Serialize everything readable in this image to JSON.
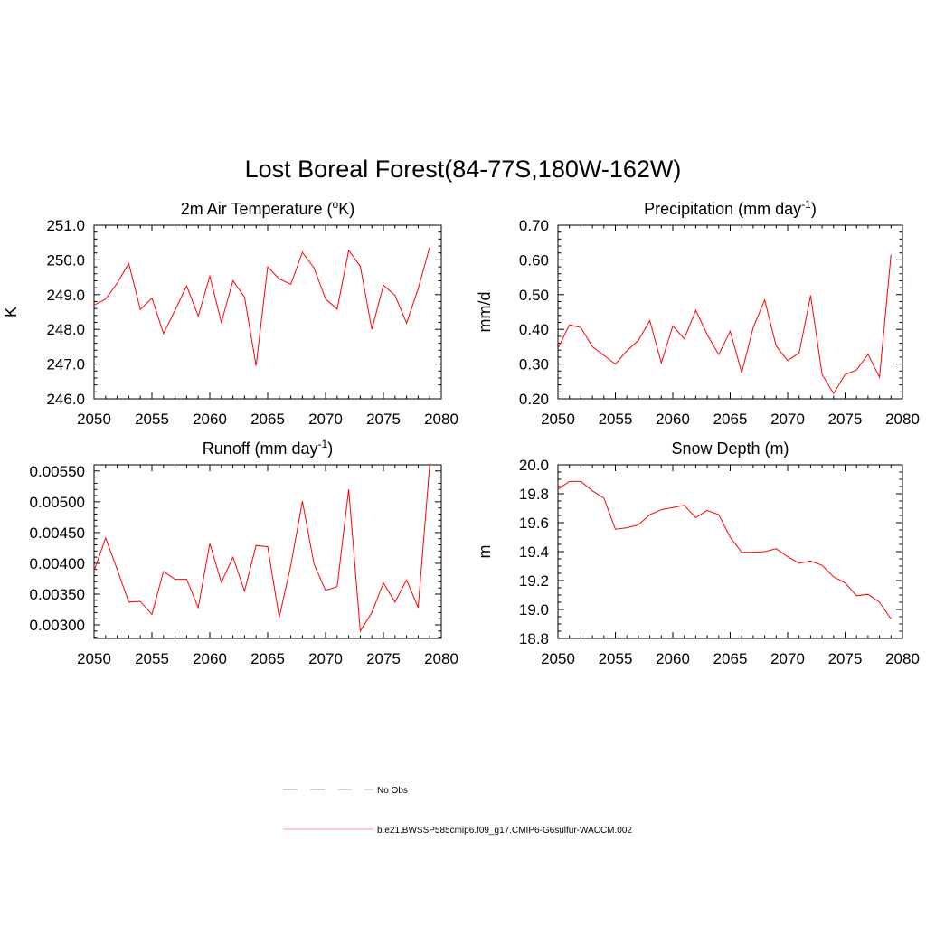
{
  "figure": {
    "title": "Lost Boreal Forest(84-77S,180W-162W)"
  },
  "legend": {
    "entries": [
      {
        "label": "No Obs",
        "color": "#9999cc",
        "style": "dashed"
      },
      {
        "label": "b.e21.BWSSP585cmip6.f09_g17.CMIP6-G6sulfur-WACCM.002",
        "color": "#ff0000",
        "style": "solid"
      }
    ]
  },
  "chart_data": [
    {
      "id": "temp",
      "type": "line",
      "title": "2m Air Temperature (",
      "title_sup": "o",
      "title_post": "K)",
      "ylabel": "K",
      "xlim": [
        2050,
        2080
      ],
      "ylim": [
        246.0,
        251.0
      ],
      "xticks": [
        2050,
        2055,
        2060,
        2065,
        2070,
        2075,
        2080
      ],
      "yticks": [
        246.0,
        247.0,
        248.0,
        249.0,
        250.0,
        251.0
      ],
      "ytick_labels": [
        "246.0",
        "247.0",
        "248.0",
        "249.0",
        "250.0",
        "251.0"
      ],
      "series": [
        {
          "color": "#ff0000",
          "x": [
            2050,
            2051,
            2052,
            2053,
            2054,
            2055,
            2056,
            2057,
            2058,
            2059,
            2060,
            2061,
            2062,
            2063,
            2064,
            2065,
            2066,
            2067,
            2068,
            2069,
            2070,
            2071,
            2072,
            2073,
            2074,
            2075,
            2076,
            2077,
            2078,
            2079
          ],
          "y": [
            248.7,
            248.87,
            249.33,
            249.9,
            248.57,
            248.9,
            247.88,
            248.55,
            249.25,
            248.38,
            249.53,
            248.2,
            249.4,
            248.93,
            246.95,
            249.8,
            249.45,
            249.3,
            250.22,
            249.77,
            248.88,
            248.58,
            250.27,
            249.82,
            248.0,
            249.27,
            248.98,
            248.18,
            249.17,
            250.37
          ]
        }
      ]
    },
    {
      "id": "precip",
      "type": "line",
      "title": "Precipitation (mm day",
      "title_sup": "-1",
      "title_post": ")",
      "ylabel": "mm/d",
      "xlim": [
        2050,
        2080
      ],
      "ylim": [
        0.2,
        0.7
      ],
      "xticks": [
        2050,
        2055,
        2060,
        2065,
        2070,
        2075,
        2080
      ],
      "yticks": [
        0.2,
        0.3,
        0.4,
        0.5,
        0.6,
        0.7
      ],
      "ytick_labels": [
        "0.20",
        "0.30",
        "0.40",
        "0.50",
        "0.60",
        "0.70"
      ],
      "series": [
        {
          "color": "#ff0000",
          "x": [
            2050,
            2051,
            2052,
            2053,
            2054,
            2055,
            2056,
            2057,
            2058,
            2059,
            2060,
            2061,
            2062,
            2063,
            2064,
            2065,
            2066,
            2067,
            2068,
            2069,
            2070,
            2071,
            2072,
            2073,
            2074,
            2075,
            2076,
            2077,
            2078,
            2079
          ],
          "y": [
            0.345,
            0.413,
            0.405,
            0.35,
            0.325,
            0.3,
            0.338,
            0.368,
            0.425,
            0.303,
            0.41,
            0.373,
            0.455,
            0.385,
            0.327,
            0.395,
            0.275,
            0.405,
            0.485,
            0.352,
            0.31,
            0.332,
            0.498,
            0.27,
            0.215,
            0.27,
            0.283,
            0.328,
            0.262,
            0.615
          ]
        }
      ]
    },
    {
      "id": "runoff",
      "type": "line",
      "title": "Runoff (mm day",
      "title_sup": "-1",
      "title_post": ")",
      "ylabel": "",
      "xlim": [
        2050,
        2080
      ],
      "ylim": [
        0.00278,
        0.0056
      ],
      "xticks": [
        2050,
        2055,
        2060,
        2065,
        2070,
        2075,
        2080
      ],
      "yticks": [
        0.003,
        0.0035,
        0.004,
        0.0045,
        0.005,
        0.0055
      ],
      "ytick_labels": [
        "0.00300",
        "0.00350",
        "0.00400",
        "0.00450",
        "0.00500",
        "0.00550"
      ],
      "series": [
        {
          "color": "#ff0000",
          "x": [
            2050,
            2051,
            2052,
            2053,
            2054,
            2055,
            2056,
            2057,
            2058,
            2059,
            2060,
            2061,
            2062,
            2063,
            2064,
            2065,
            2066,
            2067,
            2068,
            2069,
            2070,
            2071,
            2072,
            2073,
            2074,
            2075,
            2076,
            2077,
            2078,
            2079
          ],
          "y": [
            0.00388,
            0.00441,
            0.0039,
            0.00337,
            0.00338,
            0.00317,
            0.00387,
            0.00374,
            0.00374,
            0.00328,
            0.00432,
            0.00369,
            0.0041,
            0.00355,
            0.00429,
            0.00427,
            0.00312,
            0.00397,
            0.00501,
            0.00399,
            0.00356,
            0.00362,
            0.0052,
            0.0029,
            0.0032,
            0.00368,
            0.00337,
            0.00373,
            0.00328,
            0.0056
          ]
        }
      ]
    },
    {
      "id": "snow",
      "type": "line",
      "title": "Snow Depth (m)",
      "title_sup": "",
      "title_post": "",
      "ylabel": "m",
      "xlim": [
        2050,
        2080
      ],
      "ylim": [
        18.8,
        20.0
      ],
      "xticks": [
        2050,
        2055,
        2060,
        2065,
        2070,
        2075,
        2080
      ],
      "yticks": [
        18.8,
        19.0,
        19.2,
        19.4,
        19.6,
        19.8,
        20.0
      ],
      "ytick_labels": [
        "18.8",
        "19.0",
        "19.2",
        "19.4",
        "19.6",
        "19.8",
        "20.0"
      ],
      "series": [
        {
          "color": "#ff0000",
          "x": [
            2050,
            2051,
            2052,
            2053,
            2054,
            2055,
            2056,
            2057,
            2058,
            2059,
            2060,
            2061,
            2062,
            2063,
            2064,
            2065,
            2066,
            2067,
            2068,
            2069,
            2070,
            2071,
            2072,
            2073,
            2074,
            2075,
            2076,
            2077,
            2078,
            2079
          ],
          "y": [
            19.83,
            19.885,
            19.885,
            19.82,
            19.77,
            19.555,
            19.565,
            19.585,
            19.655,
            19.69,
            19.705,
            19.72,
            19.635,
            19.685,
            19.655,
            19.5,
            19.395,
            19.395,
            19.4,
            19.42,
            19.365,
            19.32,
            19.335,
            19.305,
            19.225,
            19.185,
            19.095,
            19.105,
            19.05,
            18.935
          ]
        }
      ]
    }
  ]
}
